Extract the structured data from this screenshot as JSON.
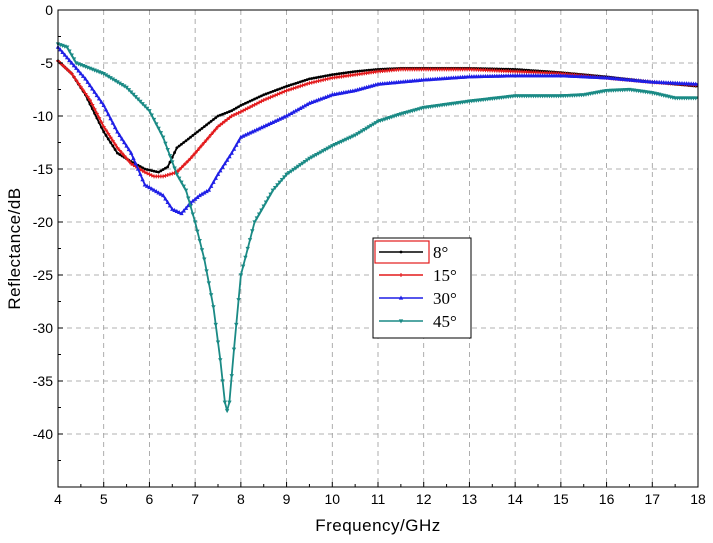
{
  "chart_data": {
    "type": "line",
    "title": "",
    "xlabel": "Frequency/GHz",
    "ylabel": "Reflectance/dB",
    "xlim": [
      4,
      18
    ],
    "ylim": [
      -45,
      0
    ],
    "xticks": [
      4,
      5,
      6,
      7,
      8,
      9,
      10,
      11,
      12,
      13,
      14,
      15,
      16,
      17,
      18
    ],
    "yticks": [
      0,
      -5,
      -10,
      -15,
      -20,
      -25,
      -30,
      -35,
      -40
    ],
    "grid": true,
    "legend_position": "center",
    "series": [
      {
        "name": "8°",
        "color": "#000000",
        "marker": "circle",
        "points": [
          [
            4,
            -4.8
          ],
          [
            4.3,
            -6
          ],
          [
            4.6,
            -8
          ],
          [
            5,
            -11.5
          ],
          [
            5.3,
            -13.5
          ],
          [
            5.6,
            -14.3
          ],
          [
            5.9,
            -15
          ],
          [
            6.2,
            -15.3
          ],
          [
            6.4,
            -14.8
          ],
          [
            6.6,
            -13
          ],
          [
            6.9,
            -12
          ],
          [
            7.2,
            -11
          ],
          [
            7.5,
            -10
          ],
          [
            7.8,
            -9.5
          ],
          [
            8,
            -9
          ],
          [
            8.5,
            -8
          ],
          [
            9,
            -7.2
          ],
          [
            9.5,
            -6.5
          ],
          [
            10,
            -6.1
          ],
          [
            10.5,
            -5.8
          ],
          [
            11,
            -5.6
          ],
          [
            11.5,
            -5.5
          ],
          [
            12,
            -5.5
          ],
          [
            13,
            -5.5
          ],
          [
            14,
            -5.6
          ],
          [
            15,
            -5.9
          ],
          [
            16,
            -6.3
          ],
          [
            17,
            -6.8
          ],
          [
            18,
            -7.2
          ]
        ]
      },
      {
        "name": "15°",
        "color": "#e31a1c",
        "marker": "plus",
        "points": [
          [
            4,
            -4.8
          ],
          [
            4.3,
            -6
          ],
          [
            4.7,
            -8.5
          ],
          [
            5,
            -11
          ],
          [
            5.3,
            -13
          ],
          [
            5.6,
            -14.5
          ],
          [
            5.9,
            -15.3
          ],
          [
            6.1,
            -15.7
          ],
          [
            6.3,
            -15.7
          ],
          [
            6.6,
            -15.3
          ],
          [
            6.9,
            -14
          ],
          [
            7.2,
            -12.5
          ],
          [
            7.5,
            -11
          ],
          [
            7.8,
            -10
          ],
          [
            8,
            -9.6
          ],
          [
            8.5,
            -8.5
          ],
          [
            9,
            -7.6
          ],
          [
            9.5,
            -6.9
          ],
          [
            10,
            -6.4
          ],
          [
            10.5,
            -6.1
          ],
          [
            11,
            -5.8
          ],
          [
            11.5,
            -5.6
          ],
          [
            12,
            -5.6
          ],
          [
            13,
            -5.6
          ],
          [
            14,
            -5.8
          ],
          [
            15,
            -6
          ],
          [
            16,
            -6.4
          ],
          [
            17,
            -6.8
          ],
          [
            18,
            -7.1
          ]
        ]
      },
      {
        "name": "30°",
        "color": "#1f1fe6",
        "marker": "triangle",
        "points": [
          [
            4,
            -3.5
          ],
          [
            4.3,
            -5
          ],
          [
            4.6,
            -6.5
          ],
          [
            5,
            -9
          ],
          [
            5.3,
            -11.5
          ],
          [
            5.6,
            -13.5
          ],
          [
            5.9,
            -16.5
          ],
          [
            6.1,
            -17
          ],
          [
            6.3,
            -17.5
          ],
          [
            6.5,
            -18.8
          ],
          [
            6.7,
            -19.2
          ],
          [
            6.9,
            -18.2
          ],
          [
            7.1,
            -17.5
          ],
          [
            7.3,
            -17
          ],
          [
            7.5,
            -15.5
          ],
          [
            7.8,
            -13.5
          ],
          [
            8,
            -12
          ],
          [
            8.5,
            -11
          ],
          [
            9,
            -10
          ],
          [
            9.5,
            -8.8
          ],
          [
            10,
            -8
          ],
          [
            10.5,
            -7.6
          ],
          [
            11,
            -7
          ],
          [
            12,
            -6.6
          ],
          [
            13,
            -6.3
          ],
          [
            14,
            -6.2
          ],
          [
            15,
            -6.2
          ],
          [
            16,
            -6.4
          ],
          [
            17,
            -6.8
          ],
          [
            18,
            -7
          ]
        ]
      },
      {
        "name": "45°",
        "color": "#1a8a85",
        "marker": "triangle-down",
        "points": [
          [
            4,
            -3.2
          ],
          [
            4.2,
            -3.5
          ],
          [
            4.4,
            -5
          ],
          [
            4.7,
            -5.5
          ],
          [
            5,
            -6
          ],
          [
            5.5,
            -7.3
          ],
          [
            6,
            -9.5
          ],
          [
            6.3,
            -12
          ],
          [
            6.6,
            -15.5
          ],
          [
            6.8,
            -17
          ],
          [
            7,
            -20
          ],
          [
            7.2,
            -23.5
          ],
          [
            7.4,
            -28
          ],
          [
            7.55,
            -33
          ],
          [
            7.65,
            -37
          ],
          [
            7.7,
            -37.8
          ],
          [
            7.75,
            -37
          ],
          [
            7.85,
            -32
          ],
          [
            8,
            -25
          ],
          [
            8.3,
            -20
          ],
          [
            8.7,
            -17
          ],
          [
            9,
            -15.5
          ],
          [
            9.5,
            -14
          ],
          [
            10,
            -12.8
          ],
          [
            10.5,
            -11.8
          ],
          [
            11,
            -10.5
          ],
          [
            11.5,
            -9.8
          ],
          [
            12,
            -9.2
          ],
          [
            13,
            -8.6
          ],
          [
            14,
            -8.1
          ],
          [
            15,
            -8.1
          ],
          [
            15.5,
            -8
          ],
          [
            16,
            -7.6
          ],
          [
            16.5,
            -7.5
          ],
          [
            17,
            -7.8
          ],
          [
            17.5,
            -8.3
          ],
          [
            18,
            -8.3
          ]
        ]
      }
    ]
  }
}
